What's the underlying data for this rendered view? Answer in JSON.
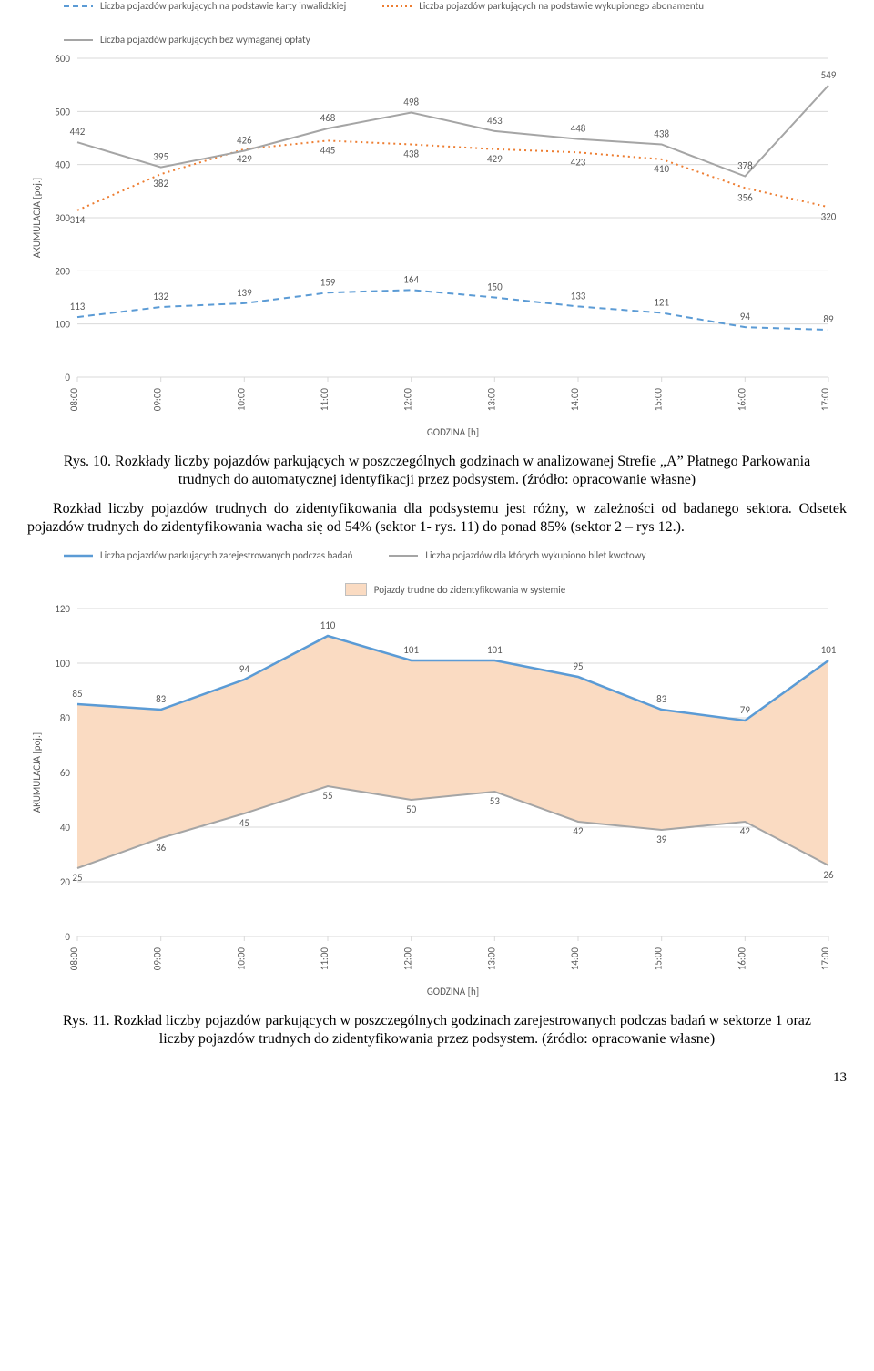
{
  "chart1": {
    "type": "line",
    "legend": [
      {
        "label": "Liczba pojazdów parkujących na podstawie karty inwalidzkiej",
        "color": "#5b9bd5",
        "style": "dashed"
      },
      {
        "label": "Liczba pojazdów parkujących na podstawie wykupionego abonamentu",
        "color": "#ed7d31",
        "style": "dotted"
      },
      {
        "label": "Liczba pojazdów parkujących bez wymaganej opłaty",
        "color": "#a5a5a5",
        "style": "solid"
      }
    ],
    "xlabels": [
      "08:00",
      "09:00",
      "10:00",
      "11:00",
      "12:00",
      "13:00",
      "14:00",
      "15:00",
      "16:00",
      "17:00"
    ],
    "xaxis_title": "GODZINA [h]",
    "yaxis_title": "AKUMULACJA [poj.]",
    "ylim": [
      0,
      600
    ],
    "ytick_step": 100,
    "series": {
      "inwalidzka": {
        "values": [
          113,
          132,
          139,
          159,
          164,
          150,
          133,
          121,
          94,
          89
        ],
        "color": "#5b9bd5",
        "style": "dashed",
        "width": 2
      },
      "abonament": {
        "values": [
          314,
          382,
          429,
          445,
          438,
          429,
          423,
          410,
          356,
          320
        ],
        "color": "#ed7d31",
        "style": "dotted",
        "width": 2
      },
      "bez_oplaty": {
        "values": [
          442,
          395,
          426,
          468,
          498,
          463,
          448,
          438,
          378,
          549
        ],
        "color": "#a5a5a5",
        "style": "solid",
        "width": 2
      }
    },
    "label_fontsize": 11,
    "tick_fontsize": 11,
    "text_color": "#595959",
    "grid_color": "#d9d9d9",
    "background_color": "#ffffff"
  },
  "caption1": "Rys. 10. Rozkłady liczby pojazdów parkujących w poszczególnych godzinach w analizowanej Strefie „A” Płatnego Parkowania trudnych do automatycznej identyfikacji przez podsystem. (źródło: opracowanie własne)",
  "paragraph": "Rozkład liczby pojazdów trudnych do zidentyfikowania dla podsystemu jest różny, w zależności od badanego sektora. Odsetek pojazdów trudnych do zidentyfikowania wacha się od 54% (sektor 1- rys. 11) do ponad 85% (sektor 2 – rys 12.).",
  "chart2": {
    "type": "line-area",
    "legend": [
      {
        "label": "Liczba pojazdów parkujących zarejestrowanych podczas badań",
        "color": "#5b9bd5",
        "style": "solid-line"
      },
      {
        "label": "Liczba pojazdów dla których wykupiono bilet kwotowy",
        "color": "#a5a5a5",
        "style": "solid-line"
      },
      {
        "label": "Pojazdy trudne do zidentyfikowania w systemie",
        "color": "#fadbc2",
        "style": "fill"
      }
    ],
    "xlabels": [
      "08:00",
      "09:00",
      "10:00",
      "11:00",
      "12:00",
      "13:00",
      "14:00",
      "15:00",
      "16:00",
      "17:00"
    ],
    "xaxis_title": "GODZINA [h]",
    "yaxis_title": "AKUMULACJA [poj.]",
    "ylim": [
      0,
      120
    ],
    "ytick_step": 20,
    "series": {
      "zarejestrowane": {
        "values": [
          85,
          83,
          94,
          110,
          101,
          101,
          95,
          83,
          79,
          101
        ],
        "color": "#5b9bd5",
        "width": 2.5
      },
      "bilet": {
        "values": [
          25,
          36,
          45,
          55,
          50,
          53,
          42,
          39,
          42,
          26
        ],
        "color": "#a5a5a5",
        "width": 2
      }
    },
    "area_fill": "#fadbc2",
    "label_fontsize": 11,
    "tick_fontsize": 11,
    "text_color": "#595959",
    "grid_color": "#d9d9d9",
    "background_color": "#ffffff"
  },
  "caption2": "Rys. 11. Rozkład liczby pojazdów parkujących w poszczególnych godzinach zarejestrowanych podczas badań w sektorze 1 oraz liczby pojazdów trudnych do zidentyfikowania przez podsystem. (źródło: opracowanie własne)",
  "page_number": "13"
}
